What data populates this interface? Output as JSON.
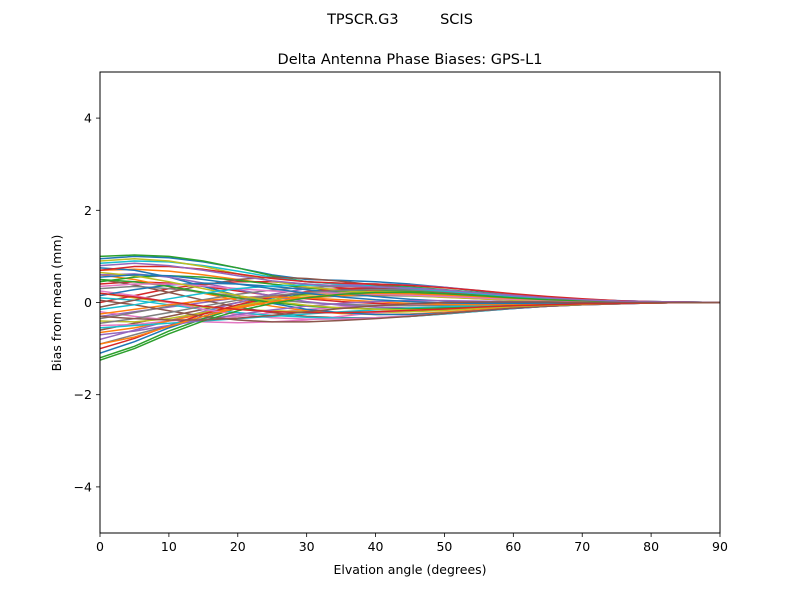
{
  "chart_data": {
    "type": "line",
    "suptitle": "TPSCR.G3         SCIS",
    "title": "Delta Antenna Phase Biases: GPS-L1",
    "xlabel": "Elvation angle (degrees)",
    "ylabel": "Bias from mean (mm)",
    "xlim": [
      0,
      90
    ],
    "ylim": [
      -5,
      5
    ],
    "xticks": [
      0,
      10,
      20,
      30,
      40,
      50,
      60,
      70,
      80,
      90
    ],
    "xtick_labels": [
      "0",
      "10",
      "20",
      "30",
      "40",
      "50",
      "60",
      "70",
      "80",
      "90"
    ],
    "yticks": [
      -4,
      -2,
      0,
      2,
      4
    ],
    "ytick_labels": [
      "−4",
      "−2",
      "0",
      "2",
      "4"
    ],
    "grid": false,
    "legend": "none",
    "x": [
      0,
      5,
      10,
      15,
      20,
      25,
      30,
      35,
      40,
      45,
      50,
      55,
      60,
      65,
      70,
      75,
      80,
      85,
      90
    ],
    "series": [
      {
        "color": "#1f77b4",
        "values": [
          0.95,
          1.0,
          0.97,
          0.88,
          0.75,
          0.6,
          0.5,
          0.48,
          0.45,
          0.4,
          0.33,
          0.25,
          0.18,
          0.12,
          0.07,
          0.04,
          0.02,
          0.01,
          0.0
        ]
      },
      {
        "color": "#ff7f0e",
        "values": [
          0.7,
          0.72,
          0.68,
          0.6,
          0.5,
          0.4,
          0.32,
          0.28,
          0.25,
          0.22,
          0.18,
          0.14,
          0.1,
          0.07,
          0.04,
          0.02,
          0.01,
          0.0,
          0.0
        ]
      },
      {
        "color": "#2ca02c",
        "values": [
          1.0,
          1.03,
          1.0,
          0.9,
          0.75,
          0.58,
          0.45,
          0.4,
          0.38,
          0.34,
          0.28,
          0.22,
          0.16,
          0.1,
          0.06,
          0.03,
          0.02,
          0.01,
          0.0
        ]
      },
      {
        "color": "#d62728",
        "values": [
          0.4,
          0.45,
          0.42,
          0.35,
          0.25,
          0.15,
          0.08,
          0.02,
          -0.02,
          -0.05,
          -0.06,
          -0.06,
          -0.05,
          -0.04,
          -0.03,
          -0.02,
          -0.01,
          0.0,
          0.0
        ]
      },
      {
        "color": "#9467bd",
        "values": [
          -0.3,
          -0.2,
          -0.1,
          0.0,
          0.1,
          0.15,
          0.18,
          0.2,
          0.2,
          0.18,
          0.15,
          0.12,
          0.08,
          0.05,
          0.03,
          0.02,
          0.01,
          0.0,
          0.0
        ]
      },
      {
        "color": "#8c564b",
        "values": [
          -0.6,
          -0.45,
          -0.3,
          -0.15,
          0.0,
          0.12,
          0.2,
          0.24,
          0.25,
          0.23,
          0.2,
          0.16,
          0.12,
          0.08,
          0.05,
          0.03,
          0.01,
          0.0,
          0.0
        ]
      },
      {
        "color": "#e377c2",
        "values": [
          -0.5,
          -0.48,
          -0.4,
          -0.35,
          -0.3,
          -0.22,
          -0.15,
          -0.1,
          -0.06,
          -0.04,
          -0.03,
          -0.02,
          -0.02,
          -0.01,
          -0.01,
          0.0,
          0.0,
          0.0,
          0.0
        ]
      },
      {
        "color": "#7f7f7f",
        "values": [
          -0.9,
          -0.7,
          -0.5,
          -0.3,
          -0.12,
          0.02,
          0.1,
          0.14,
          0.15,
          0.14,
          0.12,
          0.09,
          0.06,
          0.04,
          0.02,
          0.01,
          0.0,
          0.0,
          0.0
        ]
      },
      {
        "color": "#bcbd22",
        "values": [
          0.2,
          0.1,
          0.0,
          -0.1,
          -0.15,
          -0.18,
          -0.2,
          -0.22,
          -0.22,
          -0.2,
          -0.17,
          -0.13,
          -0.09,
          -0.06,
          -0.04,
          -0.02,
          -0.01,
          0.0,
          0.0
        ]
      },
      {
        "color": "#17becf",
        "values": [
          0.85,
          0.9,
          0.88,
          0.8,
          0.68,
          0.55,
          0.45,
          0.4,
          0.36,
          0.32,
          0.27,
          0.21,
          0.15,
          0.1,
          0.06,
          0.03,
          0.02,
          0.01,
          0.0
        ]
      },
      {
        "color": "#1f77b4",
        "values": [
          -1.1,
          -0.85,
          -0.55,
          -0.3,
          -0.08,
          0.1,
          0.22,
          0.28,
          0.3,
          0.28,
          0.24,
          0.18,
          0.13,
          0.08,
          0.05,
          0.03,
          0.01,
          0.0,
          0.0
        ]
      },
      {
        "color": "#ff7f0e",
        "values": [
          0.6,
          0.5,
          0.35,
          0.2,
          0.05,
          -0.08,
          -0.18,
          -0.24,
          -0.26,
          -0.25,
          -0.21,
          -0.16,
          -0.11,
          -0.07,
          -0.04,
          -0.02,
          -0.01,
          0.0,
          0.0
        ]
      },
      {
        "color": "#2ca02c",
        "values": [
          -1.2,
          -0.95,
          -0.62,
          -0.35,
          -0.12,
          0.06,
          0.18,
          0.24,
          0.26,
          0.25,
          0.21,
          0.16,
          0.11,
          0.07,
          0.04,
          0.02,
          0.01,
          0.0,
          0.0
        ]
      },
      {
        "color": "#d62728",
        "values": [
          0.0,
          0.15,
          0.3,
          0.4,
          0.45,
          0.45,
          0.4,
          0.32,
          0.25,
          0.18,
          0.12,
          0.08,
          0.05,
          0.03,
          0.02,
          0.01,
          0.0,
          0.0,
          0.0
        ]
      },
      {
        "color": "#9467bd",
        "values": [
          -0.8,
          -0.6,
          -0.4,
          -0.2,
          0.0,
          0.18,
          0.3,
          0.38,
          0.4,
          0.38,
          0.33,
          0.26,
          0.18,
          0.12,
          0.07,
          0.04,
          0.02,
          0.01,
          0.0
        ]
      },
      {
        "color": "#8c564b",
        "values": [
          0.5,
          0.38,
          0.22,
          0.05,
          -0.1,
          -0.22,
          -0.3,
          -0.33,
          -0.33,
          -0.3,
          -0.25,
          -0.19,
          -0.13,
          -0.08,
          -0.05,
          -0.03,
          -0.01,
          0.0,
          0.0
        ]
      },
      {
        "color": "#e377c2",
        "values": [
          -0.2,
          -0.3,
          -0.38,
          -0.42,
          -0.44,
          -0.42,
          -0.38,
          -0.3,
          -0.22,
          -0.16,
          -0.11,
          -0.07,
          -0.05,
          -0.03,
          -0.02,
          -0.01,
          0.0,
          0.0,
          0.0
        ]
      },
      {
        "color": "#7f7f7f",
        "values": [
          0.3,
          0.35,
          0.3,
          0.22,
          0.14,
          0.06,
          0.0,
          -0.04,
          -0.06,
          -0.07,
          -0.06,
          -0.05,
          -0.04,
          -0.03,
          -0.02,
          -0.01,
          0.0,
          0.0,
          0.0
        ]
      },
      {
        "color": "#bcbd22",
        "values": [
          -0.4,
          -0.42,
          -0.35,
          -0.22,
          -0.08,
          0.06,
          0.16,
          0.22,
          0.24,
          0.22,
          0.19,
          0.15,
          0.1,
          0.07,
          0.04,
          0.02,
          0.01,
          0.0,
          0.0
        ]
      },
      {
        "color": "#17becf",
        "values": [
          0.1,
          0.05,
          -0.05,
          -0.15,
          -0.22,
          -0.28,
          -0.32,
          -0.34,
          -0.33,
          -0.3,
          -0.25,
          -0.19,
          -0.13,
          -0.08,
          -0.05,
          -0.03,
          -0.01,
          0.0,
          0.0
        ]
      },
      {
        "color": "#1f77b4",
        "values": [
          0.75,
          0.7,
          0.55,
          0.35,
          0.15,
          -0.02,
          -0.15,
          -0.22,
          -0.26,
          -0.26,
          -0.23,
          -0.18,
          -0.13,
          -0.08,
          -0.05,
          -0.03,
          -0.01,
          0.0,
          0.0
        ]
      },
      {
        "color": "#ff7f0e",
        "values": [
          -0.65,
          -0.55,
          -0.4,
          -0.25,
          -0.1,
          0.02,
          0.1,
          0.15,
          0.17,
          0.16,
          0.14,
          0.11,
          0.08,
          0.05,
          0.03,
          0.02,
          0.01,
          0.0,
          0.0
        ]
      },
      {
        "color": "#2ca02c",
        "values": [
          0.45,
          0.55,
          0.58,
          0.55,
          0.48,
          0.4,
          0.32,
          0.25,
          0.2,
          0.16,
          0.12,
          0.09,
          0.06,
          0.04,
          0.02,
          0.01,
          0.0,
          0.0,
          0.0
        ]
      },
      {
        "color": "#d62728",
        "values": [
          -1.0,
          -0.78,
          -0.5,
          -0.25,
          -0.05,
          0.12,
          0.24,
          0.3,
          0.32,
          0.3,
          0.26,
          0.2,
          0.14,
          0.09,
          0.05,
          0.03,
          0.01,
          0.0,
          0.0
        ]
      },
      {
        "color": "#9467bd",
        "values": [
          0.6,
          0.62,
          0.55,
          0.42,
          0.28,
          0.14,
          0.02,
          -0.06,
          -0.1,
          -0.12,
          -0.11,
          -0.09,
          -0.07,
          -0.05,
          -0.03,
          -0.02,
          -0.01,
          0.0,
          0.0
        ]
      },
      {
        "color": "#8c564b",
        "values": [
          -0.1,
          0.05,
          0.22,
          0.38,
          0.5,
          0.55,
          0.52,
          0.46,
          0.38,
          0.3,
          0.22,
          0.15,
          0.1,
          0.06,
          0.04,
          0.02,
          0.01,
          0.0,
          0.0
        ]
      },
      {
        "color": "#e377c2",
        "values": [
          0.25,
          0.15,
          0.0,
          -0.15,
          -0.26,
          -0.33,
          -0.36,
          -0.36,
          -0.33,
          -0.29,
          -0.24,
          -0.18,
          -0.12,
          -0.08,
          -0.05,
          -0.03,
          -0.01,
          0.0,
          0.0
        ]
      },
      {
        "color": "#7f7f7f",
        "values": [
          -0.35,
          -0.22,
          -0.08,
          0.06,
          0.18,
          0.27,
          0.33,
          0.35,
          0.34,
          0.31,
          0.26,
          0.2,
          0.14,
          0.09,
          0.05,
          0.03,
          0.01,
          0.0,
          0.0
        ]
      },
      {
        "color": "#bcbd22",
        "values": [
          0.9,
          0.95,
          0.9,
          0.78,
          0.62,
          0.46,
          0.34,
          0.26,
          0.2,
          0.15,
          0.11,
          0.08,
          0.05,
          0.03,
          0.02,
          0.01,
          0.0,
          0.0,
          0.0
        ]
      },
      {
        "color": "#17becf",
        "values": [
          -0.55,
          -0.5,
          -0.45,
          -0.4,
          -0.35,
          -0.3,
          -0.25,
          -0.2,
          -0.16,
          -0.12,
          -0.09,
          -0.07,
          -0.05,
          -0.03,
          -0.02,
          -0.01,
          0.0,
          0.0,
          0.0
        ]
      },
      {
        "color": "#1f77b4",
        "values": [
          0.15,
          0.28,
          0.38,
          0.42,
          0.4,
          0.35,
          0.28,
          0.2,
          0.13,
          0.07,
          0.03,
          0.0,
          -0.01,
          -0.01,
          -0.01,
          0.0,
          0.0,
          0.0,
          0.0
        ]
      },
      {
        "color": "#ff7f0e",
        "values": [
          -0.25,
          -0.15,
          -0.05,
          0.04,
          0.1,
          0.12,
          0.1,
          0.06,
          0.02,
          -0.02,
          -0.04,
          -0.05,
          -0.04,
          -0.03,
          -0.02,
          -0.01,
          0.0,
          0.0,
          0.0
        ]
      },
      {
        "color": "#2ca02c",
        "values": [
          0.5,
          0.45,
          0.35,
          0.22,
          0.1,
          0.0,
          -0.08,
          -0.12,
          -0.14,
          -0.14,
          -0.12,
          -0.1,
          -0.07,
          -0.05,
          -0.03,
          -0.02,
          -0.01,
          0.0,
          0.0
        ]
      },
      {
        "color": "#d62728",
        "values": [
          0.7,
          0.78,
          0.78,
          0.72,
          0.62,
          0.52,
          0.45,
          0.42,
          0.4,
          0.37,
          0.32,
          0.26,
          0.19,
          0.13,
          0.08,
          0.04,
          0.02,
          0.01,
          0.0
        ]
      },
      {
        "color": "#9467bd",
        "values": [
          -0.7,
          -0.62,
          -0.5,
          -0.38,
          -0.26,
          -0.16,
          -0.08,
          -0.02,
          0.02,
          0.04,
          0.04,
          0.03,
          0.02,
          0.01,
          0.01,
          0.0,
          0.0,
          0.0,
          0.0
        ]
      },
      {
        "color": "#8c564b",
        "values": [
          0.05,
          -0.05,
          -0.18,
          -0.3,
          -0.38,
          -0.42,
          -0.42,
          -0.39,
          -0.35,
          -0.3,
          -0.24,
          -0.18,
          -0.12,
          -0.08,
          -0.05,
          -0.03,
          -0.01,
          0.0,
          0.0
        ]
      },
      {
        "color": "#e377c2",
        "values": [
          0.35,
          0.4,
          0.4,
          0.36,
          0.3,
          0.25,
          0.22,
          0.2,
          0.18,
          0.16,
          0.13,
          0.1,
          0.07,
          0.05,
          0.03,
          0.01,
          0.0,
          0.0,
          0.0
        ]
      },
      {
        "color": "#7f7f7f",
        "values": [
          -0.45,
          -0.35,
          -0.22,
          -0.08,
          0.05,
          0.15,
          0.22,
          0.26,
          0.28,
          0.27,
          0.24,
          0.19,
          0.14,
          0.09,
          0.05,
          0.03,
          0.01,
          0.0,
          0.0
        ]
      },
      {
        "color": "#bcbd22",
        "values": [
          0.65,
          0.58,
          0.45,
          0.3,
          0.15,
          0.03,
          -0.06,
          -0.12,
          -0.15,
          -0.16,
          -0.15,
          -0.12,
          -0.09,
          -0.06,
          -0.04,
          -0.02,
          -0.01,
          0.0,
          0.0
        ]
      },
      {
        "color": "#17becf",
        "values": [
          -0.15,
          -0.05,
          0.08,
          0.2,
          0.3,
          0.36,
          0.38,
          0.37,
          0.34,
          0.3,
          0.25,
          0.19,
          0.13,
          0.08,
          0.05,
          0.03,
          0.01,
          0.0,
          0.0
        ]
      },
      {
        "color": "#1f77b4",
        "values": [
          0.55,
          0.6,
          0.58,
          0.5,
          0.4,
          0.3,
          0.2,
          0.12,
          0.06,
          0.02,
          -0.01,
          -0.02,
          -0.02,
          -0.01,
          -0.01,
          0.0,
          0.0,
          0.0,
          0.0
        ]
      },
      {
        "color": "#ff7f0e",
        "values": [
          -0.9,
          -0.75,
          -0.52,
          -0.3,
          -0.12,
          0.02,
          0.12,
          0.18,
          0.2,
          0.19,
          0.17,
          0.13,
          0.09,
          0.06,
          0.04,
          0.02,
          0.01,
          0.0,
          0.0
        ]
      },
      {
        "color": "#2ca02c",
        "values": [
          -1.25,
          -1.0,
          -0.68,
          -0.4,
          -0.18,
          -0.02,
          0.1,
          0.18,
          0.22,
          0.22,
          0.19,
          0.15,
          0.1,
          0.06,
          0.04,
          0.02,
          0.01,
          0.0,
          0.0
        ]
      },
      {
        "color": "#d62728",
        "values": [
          0.2,
          0.12,
          0.02,
          -0.08,
          -0.15,
          -0.2,
          -0.22,
          -0.22,
          -0.2,
          -0.17,
          -0.14,
          -0.1,
          -0.07,
          -0.05,
          -0.03,
          -0.02,
          -0.01,
          0.0,
          0.0
        ]
      },
      {
        "color": "#9467bd",
        "values": [
          0.8,
          0.85,
          0.8,
          0.7,
          0.58,
          0.47,
          0.4,
          0.36,
          0.34,
          0.31,
          0.27,
          0.21,
          0.15,
          0.1,
          0.06,
          0.03,
          0.02,
          0.01,
          0.0
        ]
      },
      {
        "color": "#8c564b",
        "values": [
          -0.3,
          -0.35,
          -0.38,
          -0.38,
          -0.34,
          -0.28,
          -0.2,
          -0.13,
          -0.07,
          -0.03,
          0.0,
          0.01,
          0.01,
          0.01,
          0.0,
          0.0,
          0.0,
          0.0,
          0.0
        ]
      }
    ]
  }
}
